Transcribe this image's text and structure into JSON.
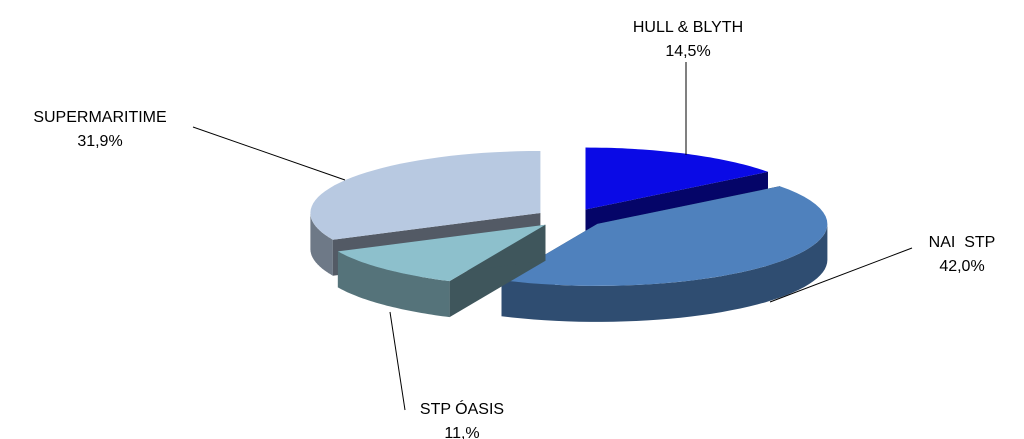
{
  "chart_data": {
    "type": "pie3d",
    "categories": [
      "HULL & BLYTH",
      "NAI  STP",
      "STP ÓASIS",
      "SUPERMARITIME"
    ],
    "values": [
      14.5,
      42.0,
      11,
      31.9
    ],
    "value_labels": [
      "14,5%",
      "42,0%",
      "11,%",
      "31,9%"
    ],
    "colors": [
      "#0a0ae6",
      "#4f81bd",
      "#8dc0cc",
      "#b8c9e1"
    ]
  }
}
